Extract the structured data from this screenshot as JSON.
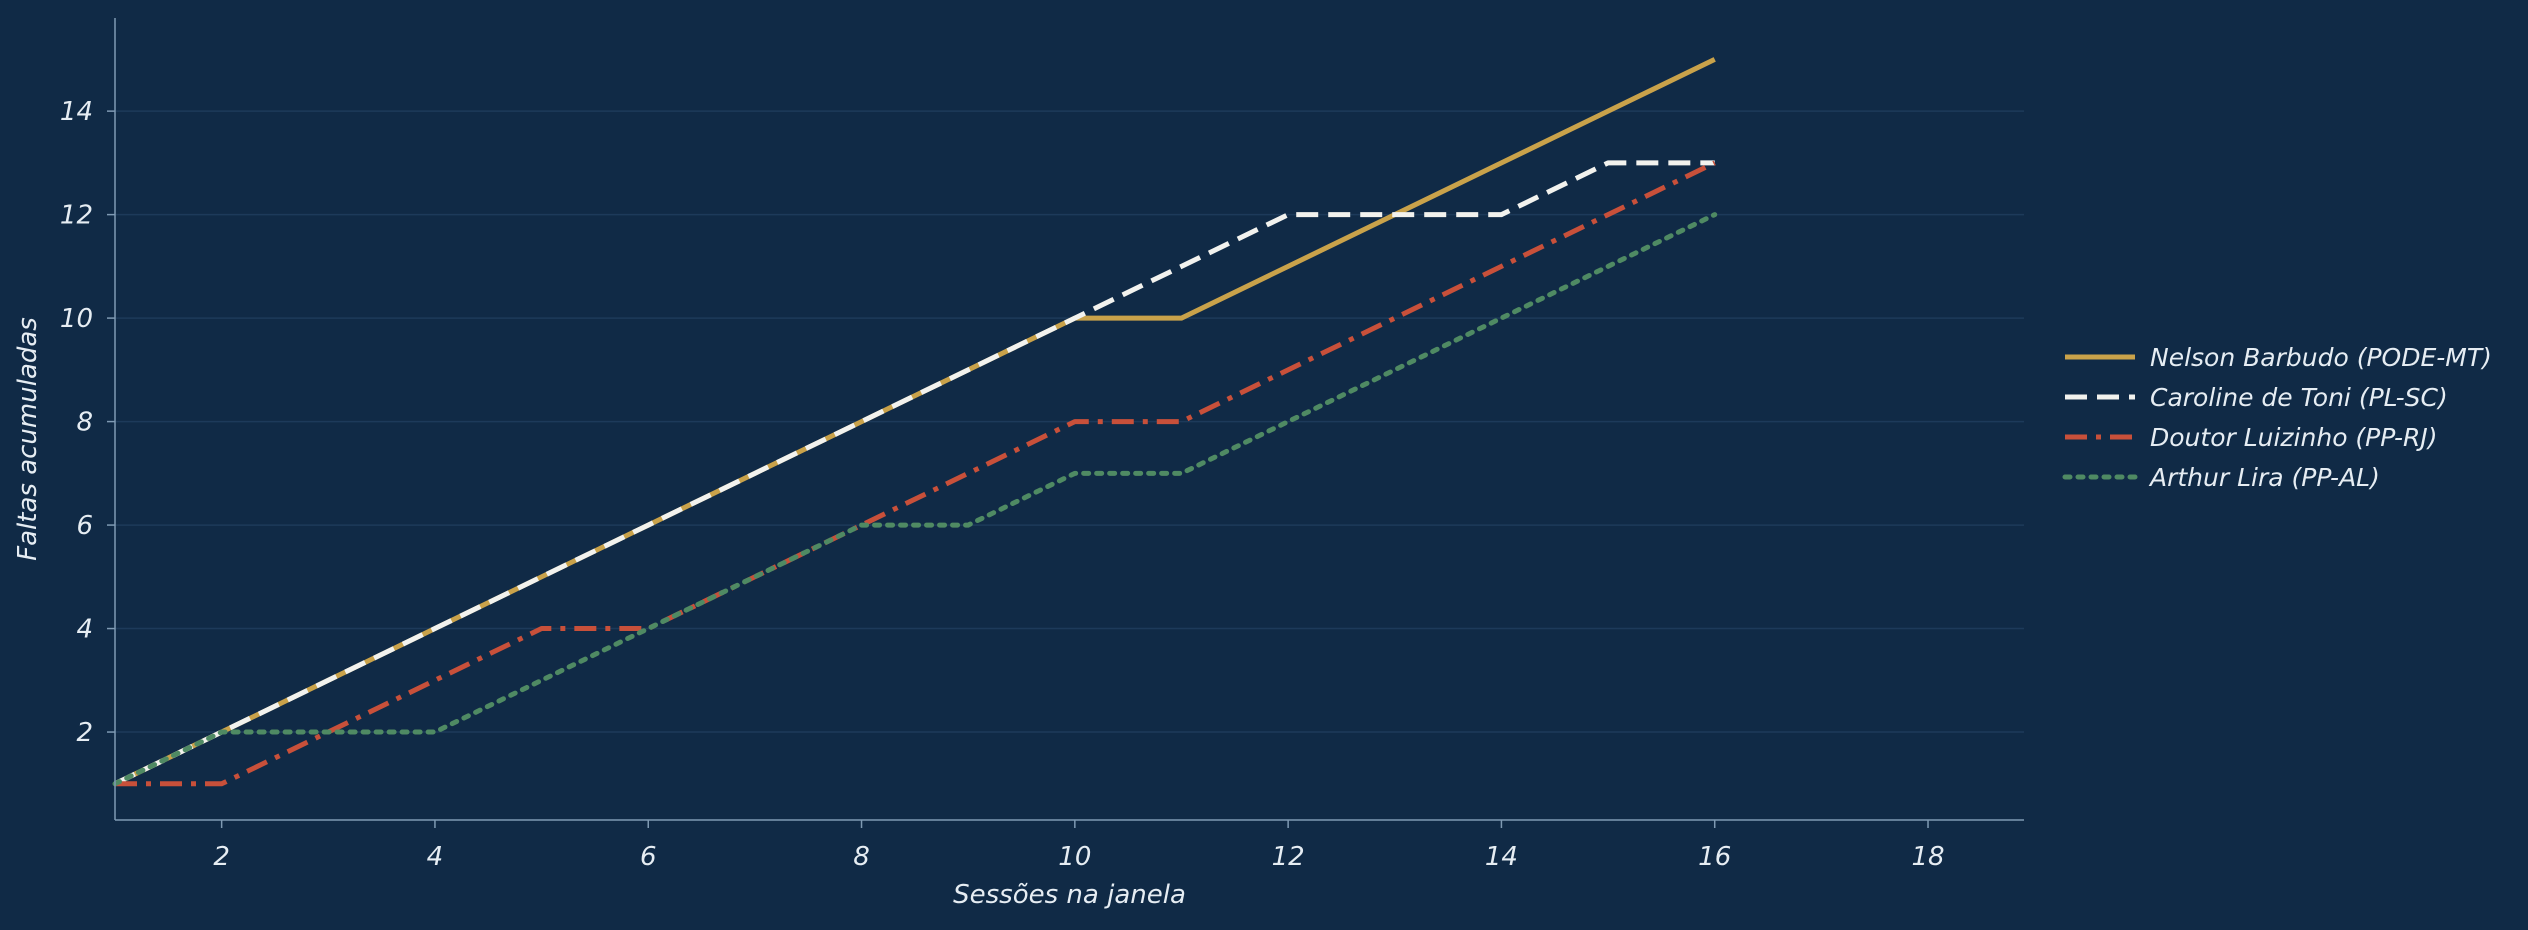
{
  "chart_data": {
    "type": "line",
    "title": "",
    "xlabel": "Sessões na janela",
    "ylabel": "Faltas acumuladas",
    "xlim": [
      1,
      18.9
    ],
    "ylim": [
      0.3,
      15.8
    ],
    "xticks": [
      2,
      4,
      6,
      8,
      10,
      12,
      14,
      16,
      18
    ],
    "yticks": [
      2,
      4,
      6,
      8,
      10,
      12,
      14
    ],
    "grid": "horizontal",
    "legend_position": "right",
    "x": [
      1,
      2,
      3,
      4,
      5,
      6,
      7,
      8,
      9,
      10,
      11,
      12,
      13,
      14,
      15,
      16
    ],
    "series": [
      {
        "name": "Nelson Barbudo (PODE-MT)",
        "color": "#c9a24a",
        "style": "solid",
        "values": [
          1,
          2,
          3,
          4,
          5,
          6,
          7,
          8,
          9,
          10,
          10,
          11,
          12,
          13,
          14,
          15
        ]
      },
      {
        "name": "Caroline de Toni (PL-SC)",
        "color": "#f2f2ee",
        "style": "dashed",
        "values": [
          1,
          2,
          3,
          4,
          5,
          6,
          7,
          8,
          9,
          10,
          11,
          12,
          12,
          12,
          13,
          13
        ]
      },
      {
        "name": "Doutor Luizinho (PP-RJ)",
        "color": "#c8503a",
        "style": "dashdot",
        "values": [
          1,
          1,
          2,
          3,
          4,
          4,
          5,
          6,
          7,
          8,
          8,
          9,
          10,
          11,
          12,
          13
        ]
      },
      {
        "name": "Arthur Lira (PP-AL)",
        "color": "#4f8a63",
        "style": "dotted",
        "values": [
          1,
          2,
          2,
          2,
          3,
          4,
          5,
          6,
          6,
          7,
          7,
          8,
          9,
          10,
          11,
          12
        ]
      }
    ]
  },
  "colors": {
    "background": "#102a46",
    "axis": "#7f9ab3",
    "grid": "#1d3a5a",
    "text": "#e6edf3"
  }
}
